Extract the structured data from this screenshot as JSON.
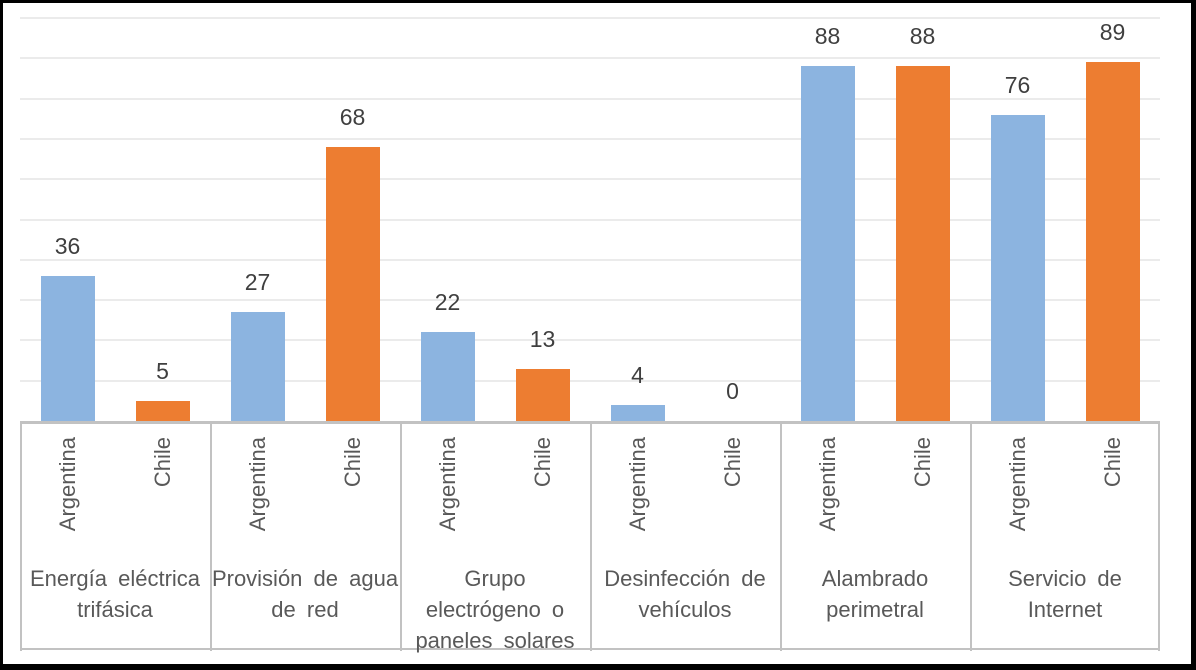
{
  "chart_data": {
    "type": "bar",
    "title": "",
    "xlabel": "",
    "ylabel": "",
    "ylim": [
      0,
      100
    ],
    "gridline_step": 10,
    "grid": true,
    "legend_position": "none",
    "value_labels_shown": true,
    "categories": [
      {
        "label": "Energía eléctrica trifásica",
        "lines": [
          "Energía eléctrica",
          "trifásica"
        ]
      },
      {
        "label": "Provisión de agua de red",
        "lines": [
          "Provisión de agua",
          "de red"
        ]
      },
      {
        "label": "Grupo electrógeno o paneles solares",
        "lines": [
          "Grupo",
          "electrógeno o",
          "paneles solares"
        ]
      },
      {
        "label": "Desinfección de vehículos",
        "lines": [
          "Desinfección de",
          "vehículos"
        ]
      },
      {
        "label": "Alambrado perimetral",
        "lines": [
          "Alambrado",
          "perimetral"
        ]
      },
      {
        "label": "Servicio de Internet",
        "lines": [
          "Servicio de",
          "Internet"
        ]
      }
    ],
    "series": [
      {
        "name": "Argentina",
        "color": "#8CB4E0",
        "values": [
          36,
          27,
          22,
          4,
          88,
          76
        ]
      },
      {
        "name": "Chile",
        "color": "#ED7D31",
        "values": [
          5,
          68,
          13,
          0,
          88,
          89
        ]
      }
    ]
  },
  "colors": {
    "argentina_bar": "#8CB4E0",
    "chile_bar": "#ED7D31",
    "gridline": "#EBEBEB",
    "axis_border": "#C2C2C2",
    "value_label_text": "#3F3F3F",
    "tick_label_text": "#595959",
    "category_label_text": "#595959",
    "frame_border": "#000000",
    "background": "#FFFFFF"
  }
}
